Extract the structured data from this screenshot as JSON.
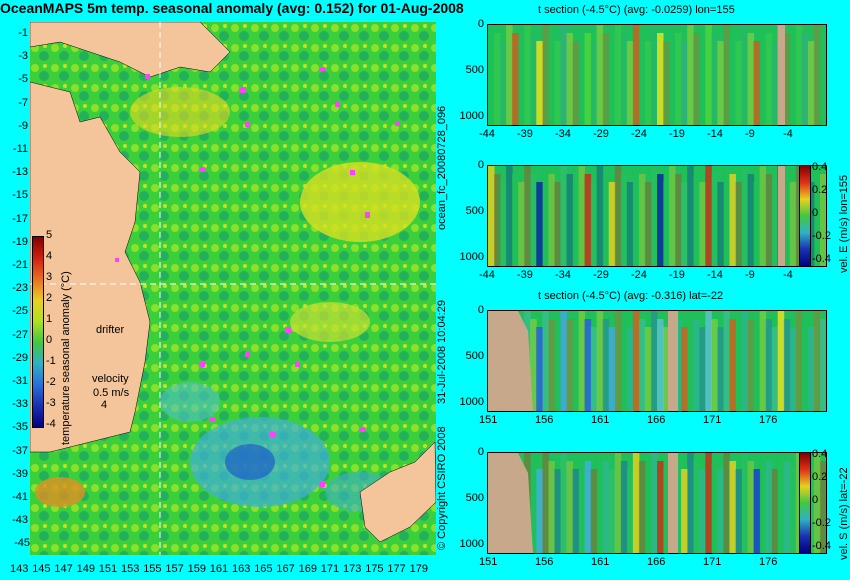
{
  "main_title": "OceanMAPS 5m temp. seasonal anomaly (avg: 0.152) for 01-Aug-2008",
  "map": {
    "lat_labels": [
      "-1",
      "-3",
      "-5",
      "-7",
      "-9",
      "-11",
      "-13",
      "-15",
      "-17",
      "-19",
      "-21",
      "-23",
      "-25",
      "-27",
      "-29",
      "-31",
      "-33",
      "-35",
      "-37",
      "-39",
      "-41",
      "-43",
      "-45"
    ],
    "lon_labels": [
      "143",
      "145",
      "147",
      "149",
      "151",
      "153",
      "155",
      "157",
      "159",
      "161",
      "163",
      "165",
      "167",
      "169",
      "171",
      "173",
      "175",
      "177",
      "179"
    ],
    "drifter_label": "drifter",
    "velocity_label": "velocity",
    "velocity_value": "0.5 m/s",
    "velocity_value2": "4",
    "colorbar_label": "temperature seasonal anomaly (°C)",
    "colorbar_ticks": [
      "5",
      "4",
      "3",
      "2",
      "1",
      "0",
      "-1",
      "-2",
      "-3",
      "-4"
    ]
  },
  "side_labels": {
    "forecast_id": "ocean_fc_20080728_096",
    "timestamp": "31-Jul-2008 10:04:29",
    "copyright": "© Copyright CSIRO 2008"
  },
  "panels": [
    {
      "title": "t section (-4.5°C) (avg: -0.0259) lon=155",
      "y_ticks": [
        "0",
        "500",
        "1000"
      ],
      "x_ticks": [
        "-44",
        "-39",
        "-34",
        "-29",
        "-24",
        "-19",
        "-14",
        "-9",
        "-4"
      ],
      "colors": [
        "#1fbf5a",
        "#4bd63b",
        "#2fb07a",
        "#e8e020",
        "#c86020",
        "#2aa0c8",
        "#1c4fd0"
      ]
    },
    {
      "title": "",
      "y_ticks": [
        "0",
        "500",
        "1000"
      ],
      "x_ticks": [
        "-44",
        "-39",
        "-34",
        "-29",
        "-24",
        "-19",
        "-14",
        "-9",
        "-4"
      ],
      "colorbar_label": "vel. E (m/s) lon=155",
      "colorbar_ticks": [
        "0.4",
        "0.2",
        "0",
        "-0.2",
        "-0.4"
      ],
      "colors": [
        "#1fbf5a",
        "#3fa0d0",
        "#1a3fd0",
        "#e0d020",
        "#c83018",
        "#2ec06a",
        "#0a28a0"
      ]
    },
    {
      "title": "t section (-4.5°C) (avg: -0.316) lat=-22",
      "y_ticks": [
        "0",
        "500",
        "1000"
      ],
      "x_ticks": [
        "151",
        "156",
        "161",
        "166",
        "171",
        "176"
      ],
      "colors": [
        "#1fbf5a",
        "#5ac0d0",
        "#3fa8e0",
        "#e8e020",
        "#d06020",
        "#2a60d8"
      ]
    },
    {
      "title": "",
      "y_ticks": [
        "0",
        "500",
        "1000"
      ],
      "x_ticks": [
        "151",
        "156",
        "161",
        "166",
        "171",
        "176"
      ],
      "colorbar_label": "vel. S (m/s) lat=-22",
      "colorbar_ticks": [
        "0.4",
        "0.2",
        "0",
        "-0.2",
        "-0.4"
      ],
      "colors": [
        "#1fbf5a",
        "#e0d020",
        "#3fb0d8",
        "#1a3fd0",
        "#c83018",
        "#2ec06a"
      ]
    }
  ],
  "colors": {
    "background": "#00ffff",
    "land": "#f4c49a",
    "section_land": "#c8a88a",
    "drifter": "#ff40ff"
  }
}
